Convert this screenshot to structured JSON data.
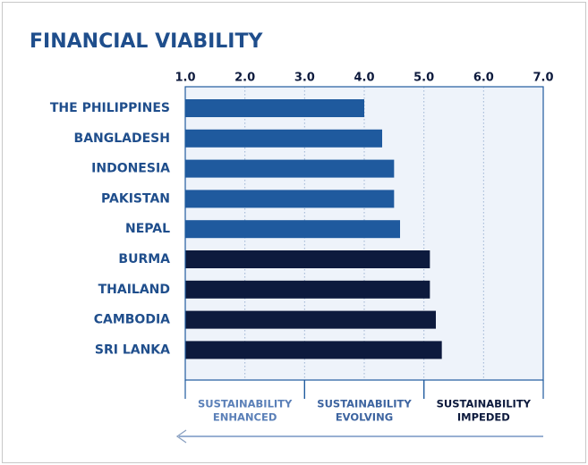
{
  "chart_data": {
    "type": "bar",
    "orientation": "horizontal",
    "title": "FINANCIAL VIABILITY",
    "categories": [
      "THE PHILIPPINES",
      "BANGLADESH",
      "INDONESIA",
      "PAKISTAN",
      "NEPAL",
      "BURMA",
      "THAILAND",
      "CAMBODIA",
      "SRI LANKA"
    ],
    "values": [
      4.0,
      4.3,
      4.5,
      4.5,
      4.6,
      5.1,
      5.1,
      5.2,
      5.3
    ],
    "colors": [
      "#1f5a9e",
      "#1f5a9e",
      "#1f5a9e",
      "#1f5a9e",
      "#1f5a9e",
      "#0d1a3d",
      "#0d1a3d",
      "#0d1a3d",
      "#0d1a3d"
    ],
    "xlim": [
      1,
      7
    ],
    "xticks": [
      {
        "value": 1,
        "label": "1.0"
      },
      {
        "value": 2,
        "label": "2.0"
      },
      {
        "value": 3,
        "label": "3.0"
      },
      {
        "value": 4,
        "label": "4.0"
      },
      {
        "value": 5,
        "label": "5.0"
      },
      {
        "value": 6,
        "label": "6.0"
      },
      {
        "value": 7,
        "label": "7.0"
      }
    ],
    "grid": true,
    "zones": [
      {
        "label": [
          "SUSTAINABILITY",
          "ENHANCED"
        ],
        "from": 1,
        "to": 3,
        "color": "#5b80b8"
      },
      {
        "label": [
          "SUSTAINABILITY",
          "EVOLVING"
        ],
        "from": 3,
        "to": 5,
        "color": "#3d64a0"
      },
      {
        "label": [
          "SUSTAINABILITY",
          "IMPEDED"
        ],
        "from": 5,
        "to": 7,
        "color": "#0d1a3d"
      }
    ]
  }
}
